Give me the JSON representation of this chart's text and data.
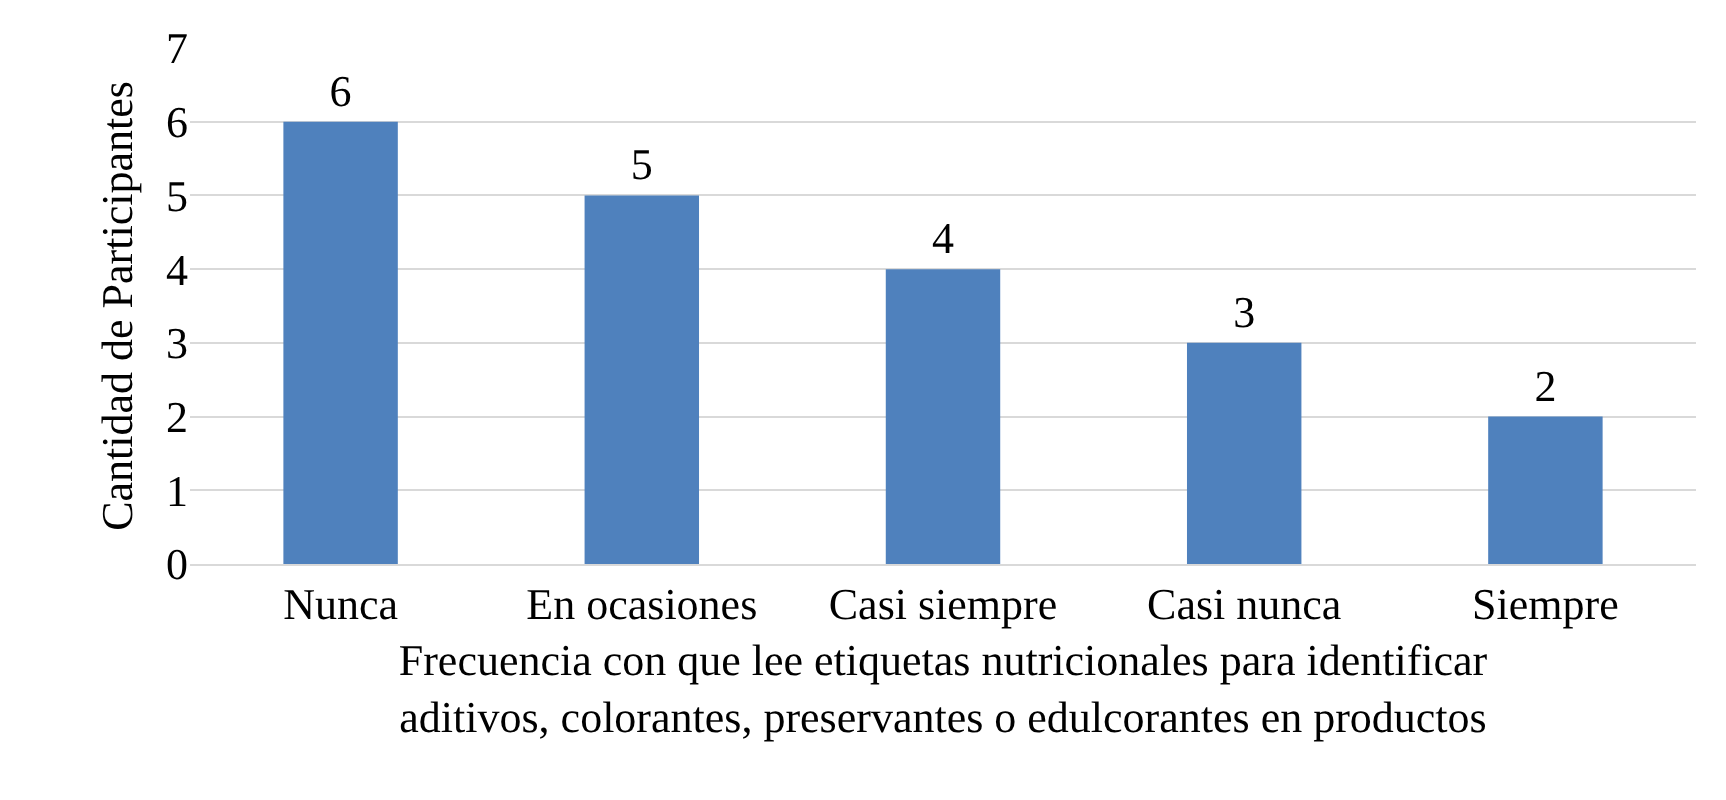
{
  "chart_data": {
    "type": "bar",
    "categories": [
      "Nunca",
      "En ocasiones",
      "Casi siempre",
      "Casi nunca",
      "Siempre"
    ],
    "values": [
      6,
      5,
      4,
      3,
      2
    ],
    "color": "#4f81bd",
    "xlabel": "Frecuencia con que lee etiquetas nutricionales para identificar\naditivos, colorantes, preservantes o edulcorantes en productos",
    "ylabel": "Cantidad de Participantes",
    "ylim": [
      0,
      7
    ],
    "yticks": [
      0,
      1,
      2,
      3,
      4,
      5,
      6,
      7
    ],
    "grid": "y",
    "data_labels": true,
    "legend": false
  }
}
